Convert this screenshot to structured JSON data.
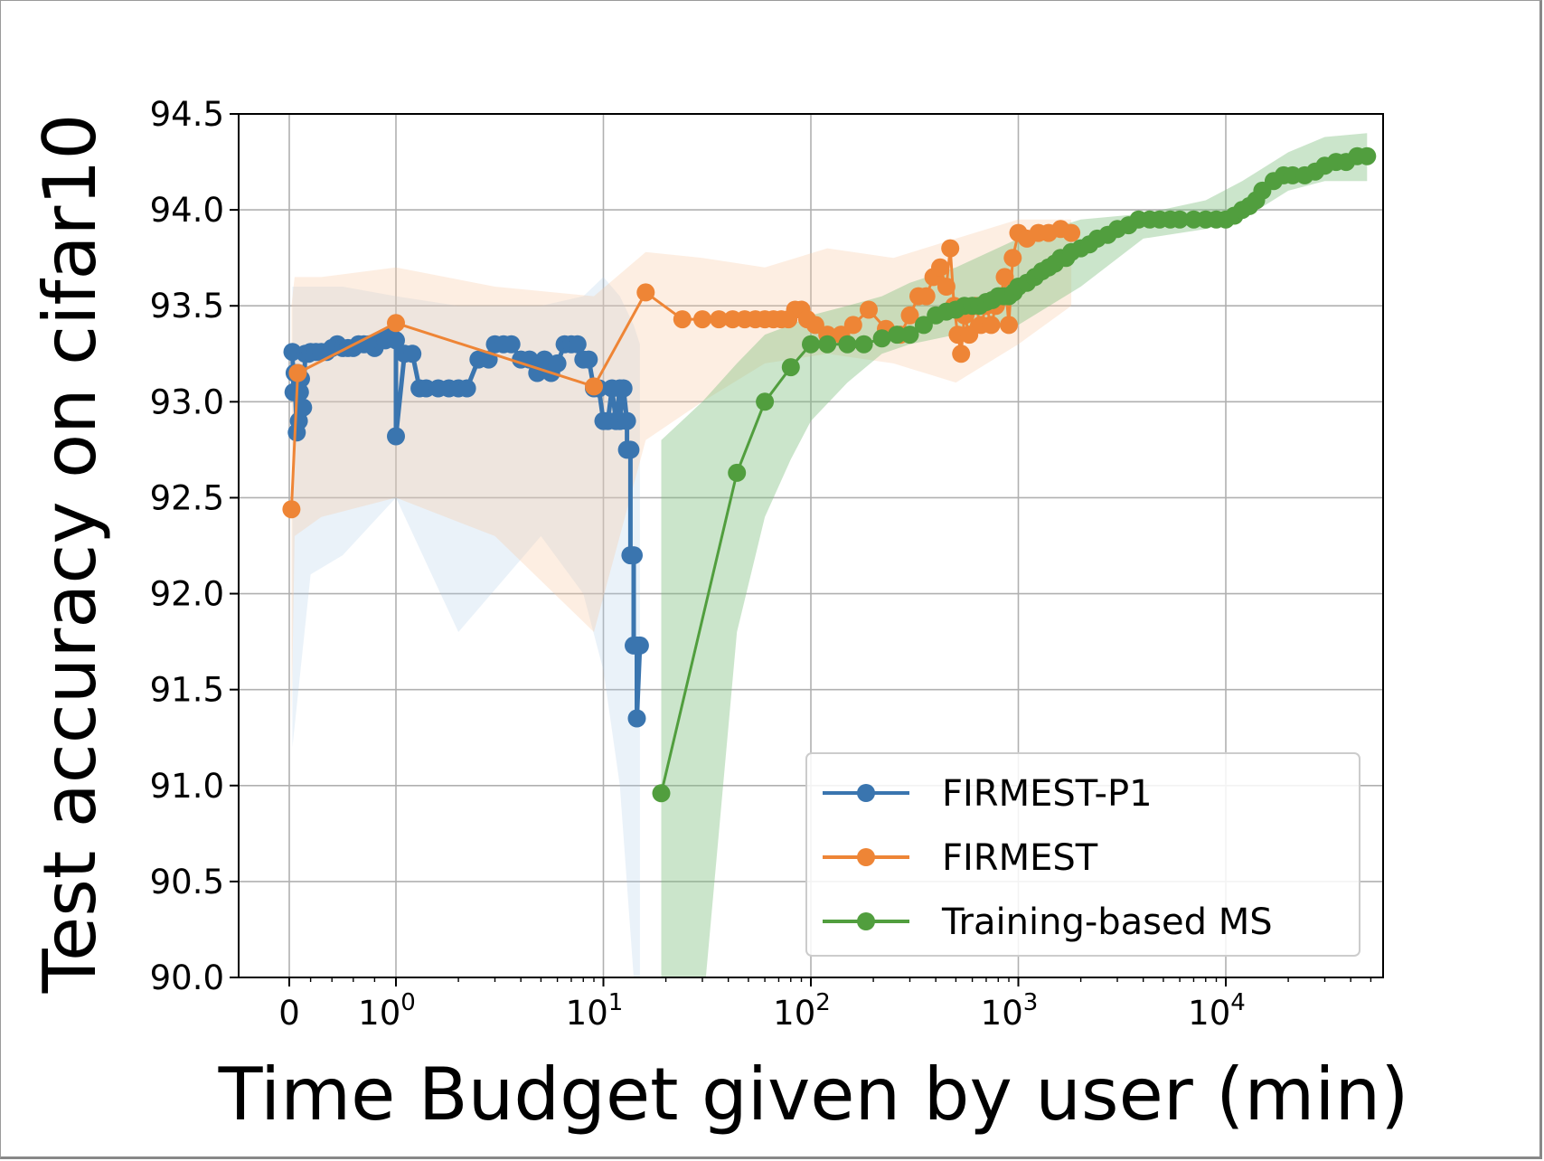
{
  "chart_data": {
    "type": "line",
    "xlabel": "Time Budget given by user (min)",
    "ylabel": "Test accuracy on cifar10",
    "x_scale": "symlog",
    "xlim": [
      -0.35,
      80000
    ],
    "ylim": [
      90.0,
      94.5
    ],
    "x_ticks": [
      {
        "value": 0,
        "label": "0",
        "exp": ""
      },
      {
        "value": 1,
        "label": "10",
        "exp": "0"
      },
      {
        "value": 10,
        "label": "10",
        "exp": "1"
      },
      {
        "value": 100,
        "label": "10",
        "exp": "2"
      },
      {
        "value": 1000,
        "label": "10",
        "exp": "3"
      },
      {
        "value": 10000,
        "label": "10",
        "exp": "4"
      }
    ],
    "y_ticks": [
      "90.0",
      "90.5",
      "91.0",
      "91.5",
      "92.0",
      "92.5",
      "93.0",
      "93.5",
      "94.0",
      "94.5"
    ],
    "grid": true,
    "legend_position": "lower-right",
    "series": [
      {
        "name": "FIRMEST-P1",
        "color": "#3a75af",
        "x": [
          0.03,
          0.04,
          0.05,
          0.07,
          0.08,
          0.09,
          0.1,
          0.11,
          0.13,
          0.15,
          0.18,
          0.2,
          0.25,
          0.3,
          0.35,
          0.4,
          0.45,
          0.5,
          0.55,
          0.6,
          0.65,
          0.7,
          0.75,
          0.8,
          0.85,
          0.9,
          0.95,
          1.0,
          1.0,
          1.1,
          1.2,
          1.3,
          1.4,
          1.6,
          1.8,
          2.0,
          2.2,
          2.5,
          2.8,
          3.0,
          3.3,
          3.6,
          4.0,
          4.4,
          4.8,
          5.2,
          5.6,
          6.0,
          6.5,
          7.0,
          7.5,
          8.0,
          8.5,
          9.0,
          9.5,
          10.0,
          10.5,
          11.0,
          11.5,
          12.0,
          12.0,
          12.5,
          13.0,
          13.0,
          13.5,
          13.5,
          14.0,
          14.0,
          14.5,
          14.5,
          15.0
        ],
        "values": [
          93.26,
          93.05,
          93.15,
          92.84,
          93.15,
          92.9,
          93.05,
          93.12,
          92.97,
          93.25,
          93.25,
          93.26,
          93.26,
          93.26,
          93.26,
          93.28,
          93.3,
          93.28,
          93.28,
          93.28,
          93.3,
          93.3,
          93.3,
          93.28,
          93.32,
          93.32,
          93.35,
          93.32,
          92.82,
          93.25,
          93.25,
          93.07,
          93.07,
          93.07,
          93.07,
          93.07,
          93.07,
          93.22,
          93.22,
          93.3,
          93.3,
          93.3,
          93.22,
          93.22,
          93.15,
          93.22,
          93.15,
          93.2,
          93.3,
          93.3,
          93.3,
          93.22,
          93.22,
          93.07,
          93.07,
          92.9,
          92.9,
          93.07,
          92.9,
          93.07,
          92.9,
          93.07,
          92.9,
          92.75,
          92.75,
          92.2,
          92.2,
          91.73,
          91.73,
          91.35,
          91.73
        ]
      },
      {
        "name": "FIRMEST",
        "color": "#ee8536",
        "x": [
          0.02,
          0.08,
          1.0,
          9.0,
          16.0,
          24.0,
          30.0,
          36.0,
          42.0,
          48.0,
          54.0,
          60.0,
          66.0,
          72.0,
          78.0,
          84.0,
          90.0,
          96.0,
          105.0,
          120.0,
          140.0,
          160.0,
          190.0,
          230.0,
          270.0,
          300.0,
          330.0,
          360.0,
          390.0,
          420.0,
          450.0,
          470.0,
          490.0,
          510.0,
          530.0,
          550.0,
          580.0,
          620.0,
          660.0,
          700.0,
          740.0,
          780.0,
          820.0,
          860.0,
          900.0,
          940.0,
          1000.0,
          1100.0,
          1250.0,
          1400.0,
          1600.0,
          1800.0
        ],
        "values": [
          92.44,
          93.15,
          93.41,
          93.08,
          93.57,
          93.43,
          93.43,
          93.43,
          93.43,
          93.43,
          93.43,
          93.43,
          93.43,
          93.43,
          93.43,
          93.48,
          93.48,
          93.43,
          93.4,
          93.35,
          93.35,
          93.4,
          93.48,
          93.38,
          93.35,
          93.45,
          93.55,
          93.55,
          93.65,
          93.7,
          93.6,
          93.8,
          93.5,
          93.35,
          93.25,
          93.45,
          93.35,
          93.5,
          93.4,
          93.5,
          93.4,
          93.5,
          93.55,
          93.65,
          93.4,
          93.75,
          93.88,
          93.85,
          93.88,
          93.88,
          93.9,
          93.88
        ]
      },
      {
        "name": "Training-based MS",
        "color": "#519e3e",
        "x": [
          19,
          44,
          60,
          80,
          100,
          120,
          150,
          180,
          220,
          260,
          300,
          350,
          400,
          450,
          500,
          550,
          600,
          650,
          700,
          750,
          800,
          850,
          900,
          950,
          1000,
          1100,
          1200,
          1300,
          1400,
          1500,
          1600,
          1700,
          1800,
          2000,
          2200,
          2400,
          2700,
          3000,
          3400,
          3800,
          4300,
          4800,
          5400,
          6000,
          7000,
          8000,
          9000,
          10000,
          11000,
          12000,
          13000,
          14000,
          15000,
          17000,
          19000,
          21000,
          24000,
          27000,
          30000,
          34000,
          38000,
          43000,
          48000
        ],
        "values": [
          90.96,
          92.63,
          93.0,
          93.18,
          93.3,
          93.3,
          93.3,
          93.3,
          93.33,
          93.35,
          93.35,
          93.4,
          93.45,
          93.47,
          93.48,
          93.5,
          93.5,
          93.5,
          93.52,
          93.53,
          93.55,
          93.55,
          93.55,
          93.57,
          93.6,
          93.62,
          93.65,
          93.68,
          93.7,
          93.72,
          93.75,
          93.75,
          93.78,
          93.8,
          93.82,
          93.85,
          93.87,
          93.9,
          93.92,
          93.95,
          93.95,
          93.95,
          93.95,
          93.95,
          93.95,
          93.95,
          93.95,
          93.95,
          93.97,
          94.0,
          94.02,
          94.05,
          94.1,
          94.15,
          94.18,
          94.18,
          94.18,
          94.2,
          94.23,
          94.25,
          94.25,
          94.28,
          94.28
        ]
      }
    ],
    "bands": [
      {
        "series": "FIRMEST-P1",
        "color": "#aacbe8",
        "opacity": 0.25,
        "x": [
          0.03,
          0.2,
          0.5,
          1.0,
          2.0,
          5.0,
          8.0,
          10.0,
          12.0,
          14.0,
          15.0
        ],
        "lower": [
          91.2,
          92.1,
          92.2,
          92.5,
          91.8,
          92.3,
          92.0,
          91.6,
          91.0,
          90.0,
          90.0
        ],
        "upper": [
          93.6,
          93.6,
          93.6,
          93.55,
          93.5,
          93.5,
          93.55,
          93.65,
          93.55,
          93.4,
          93.3
        ]
      },
      {
        "series": "FIRMEST",
        "color": "#f7c6a0",
        "opacity": 0.3,
        "x": [
          0.02,
          0.05,
          0.3,
          1.0,
          3.0,
          9.0,
          16.0,
          30.0,
          60.0,
          120.0,
          250.0,
          500.0,
          1000.0,
          1800.0
        ],
        "lower": [
          91.3,
          92.3,
          92.4,
          92.5,
          92.3,
          91.8,
          92.8,
          93.0,
          93.2,
          93.25,
          93.2,
          93.1,
          93.3,
          93.5
        ],
        "upper": [
          93.5,
          93.65,
          93.65,
          93.7,
          93.6,
          93.55,
          93.78,
          93.75,
          93.7,
          93.8,
          93.75,
          93.85,
          93.95,
          93.95
        ]
      },
      {
        "series": "Training-based MS",
        "color": "#7cbf7e",
        "opacity": 0.4,
        "x": [
          19,
          30,
          44,
          60,
          80,
          100,
          150,
          220,
          300,
          500,
          1000,
          2000,
          4000,
          8000,
          12000,
          20000,
          30000,
          48000
        ],
        "lower": [
          89.5,
          89.8,
          91.8,
          92.4,
          92.7,
          92.9,
          93.1,
          93.25,
          93.3,
          93.35,
          93.4,
          93.6,
          93.85,
          93.9,
          93.95,
          94.1,
          94.15,
          94.15
        ],
        "upper": [
          92.8,
          93.0,
          93.2,
          93.35,
          93.4,
          93.45,
          93.5,
          93.55,
          93.62,
          93.7,
          93.85,
          93.95,
          93.98,
          94.05,
          94.15,
          94.3,
          94.38,
          94.4
        ]
      }
    ]
  }
}
